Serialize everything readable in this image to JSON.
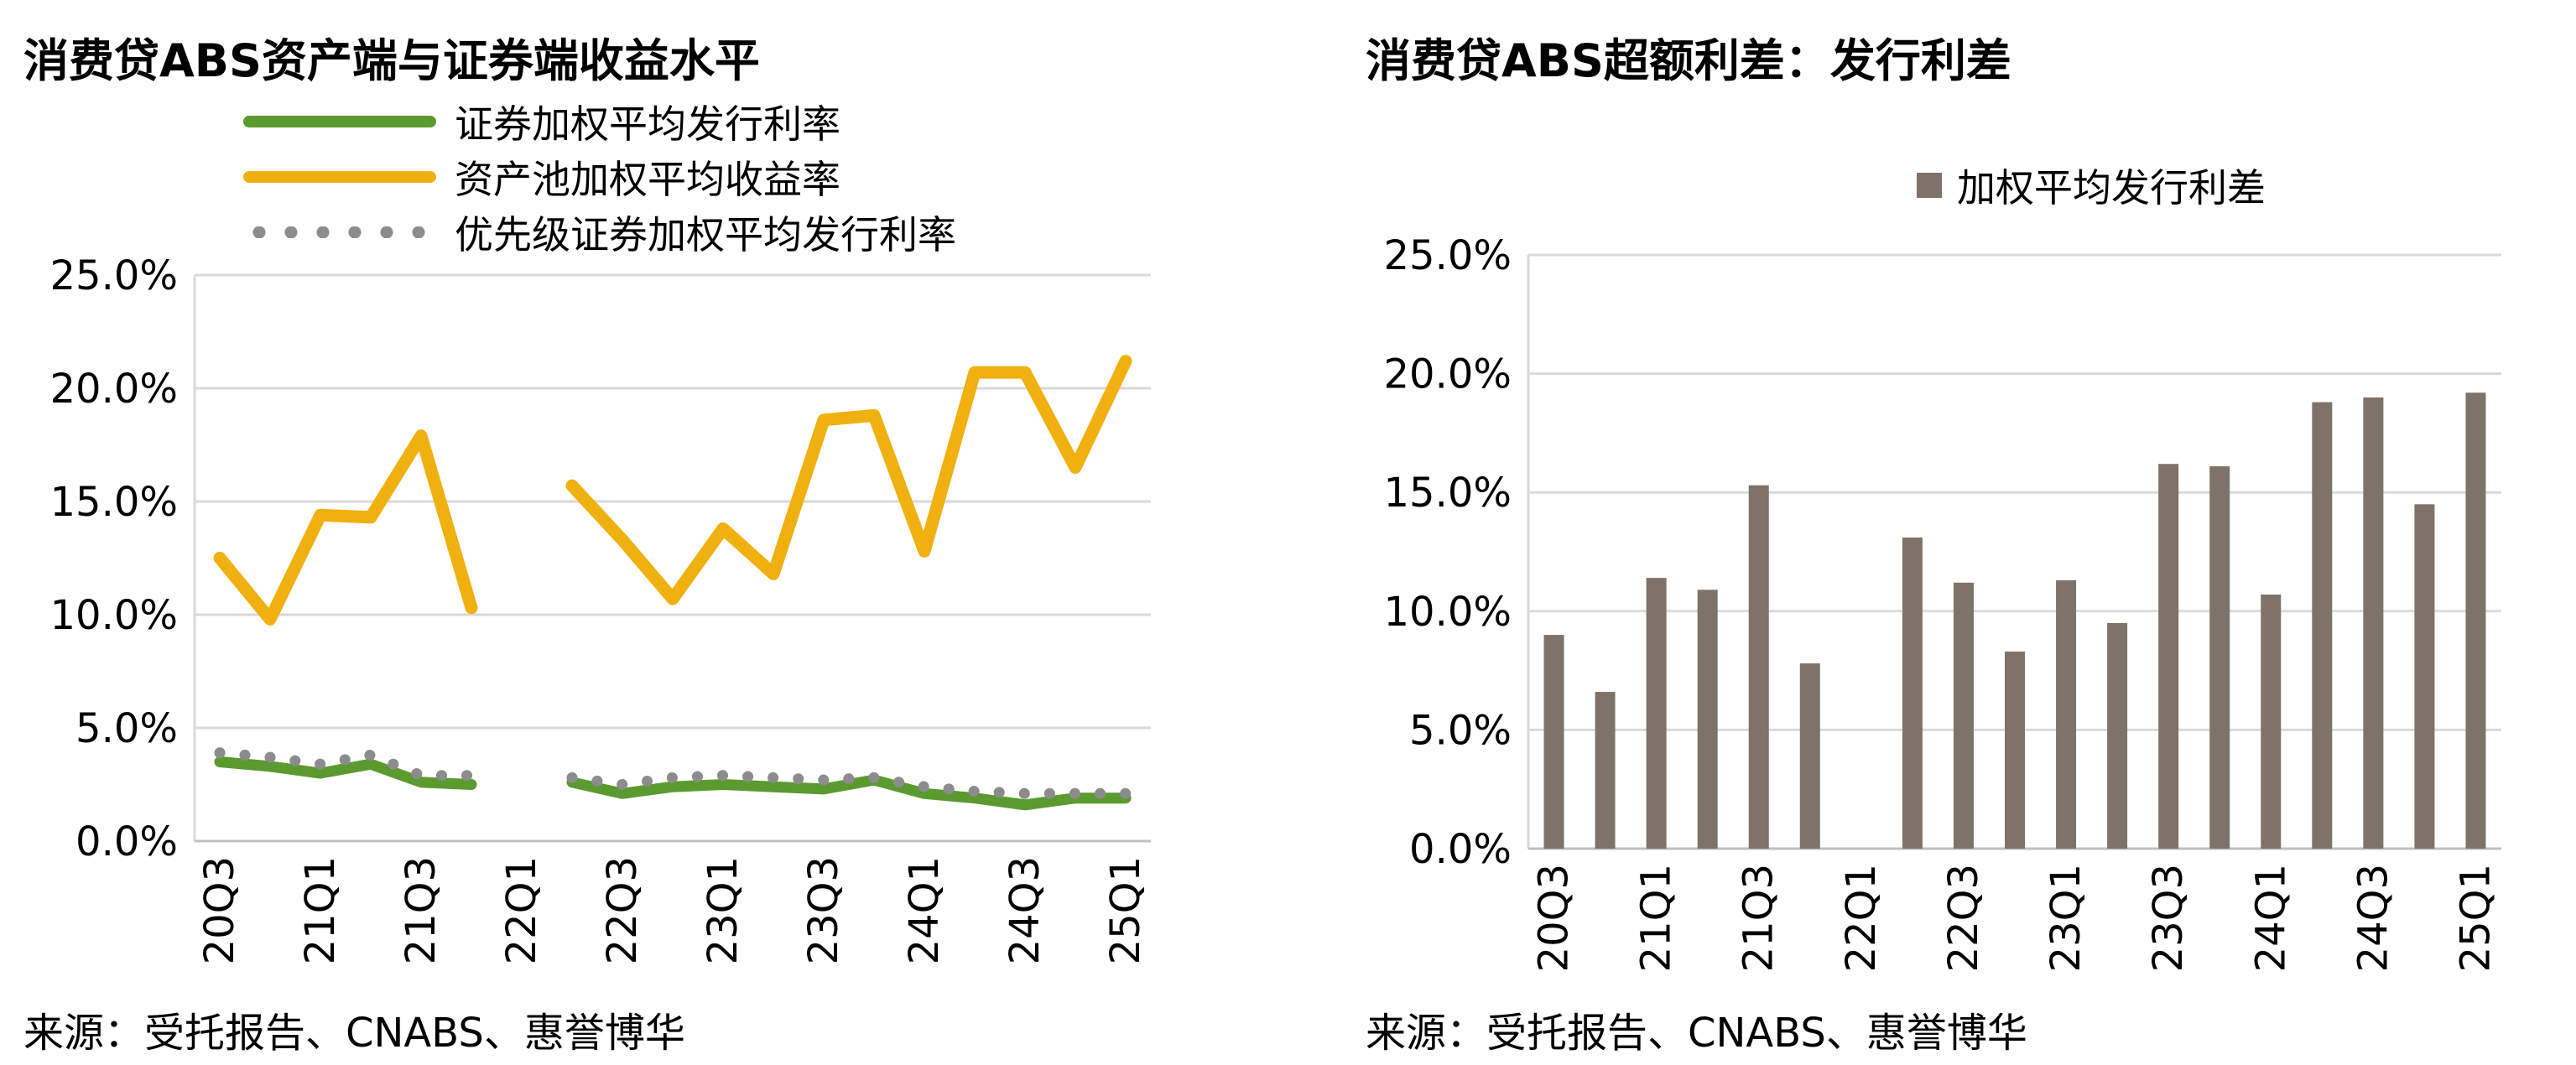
{
  "chart_data": [
    {
      "type": "line",
      "title": "消费贷ABS资产端与证券端收益水平",
      "categories": [
        "20Q3",
        "20Q4",
        "21Q1",
        "21Q2",
        "21Q3",
        "21Q4",
        "22Q1",
        "22Q2",
        "22Q3",
        "22Q4",
        "23Q1",
        "23Q2",
        "23Q3",
        "23Q4",
        "24Q1",
        "24Q2",
        "24Q3",
        "24Q4",
        "25Q1"
      ],
      "x_tick_labels": [
        "20Q3",
        "21Q1",
        "21Q3",
        "22Q1",
        "22Q3",
        "23Q1",
        "23Q3",
        "24Q1",
        "24Q3",
        "25Q1"
      ],
      "y_tick_labels": [
        "25.0%",
        "20.0%",
        "15.0%",
        "10.0%",
        "5.0%",
        "0.0%"
      ],
      "ylim": [
        0,
        25
      ],
      "y_unit": "%",
      "grid": "horizontal",
      "legend_position": "top",
      "series": [
        {
          "name": "证券加权平均发行利率",
          "color": "#5b9a2e",
          "style": "solid",
          "values": [
            3.5,
            3.3,
            3.0,
            3.4,
            2.6,
            2.5,
            null,
            2.6,
            2.1,
            2.4,
            2.5,
            2.4,
            2.3,
            2.7,
            2.1,
            1.9,
            1.6,
            1.9,
            1.9
          ]
        },
        {
          "name": "资产池加权平均收益率",
          "color": "#f0b010",
          "style": "solid",
          "values": [
            12.5,
            9.8,
            14.4,
            14.3,
            17.9,
            10.3,
            null,
            15.7,
            13.3,
            10.7,
            13.8,
            11.8,
            18.6,
            18.8,
            12.8,
            20.7,
            20.7,
            16.5,
            21.2
          ]
        },
        {
          "name": "优先级证券加权平均发行利率",
          "color": "#8c8c8c",
          "style": "dotted",
          "values": [
            3.9,
            3.7,
            3.4,
            3.8,
            2.9,
            2.9,
            null,
            2.8,
            2.5,
            2.8,
            2.9,
            2.8,
            2.7,
            2.8,
            2.4,
            2.2,
            2.1,
            2.1,
            2.1
          ]
        }
      ]
    },
    {
      "type": "bar",
      "title": "消费贷ABS超额利差：发行利差",
      "categories": [
        "20Q3",
        "20Q4",
        "21Q1",
        "21Q2",
        "21Q3",
        "21Q4",
        "22Q1",
        "22Q2",
        "22Q3",
        "22Q4",
        "23Q1",
        "23Q2",
        "23Q3",
        "23Q4",
        "24Q1",
        "24Q2",
        "24Q3",
        "24Q4",
        "25Q1"
      ],
      "x_tick_labels": [
        "20Q3",
        "21Q1",
        "21Q3",
        "22Q1",
        "22Q3",
        "23Q1",
        "23Q3",
        "24Q1",
        "24Q3",
        "25Q1"
      ],
      "y_tick_labels": [
        "25.0%",
        "20.0%",
        "15.0%",
        "10.0%",
        "5.0%",
        "0.0%"
      ],
      "ylim": [
        0,
        25
      ],
      "y_unit": "%",
      "grid": "horizontal",
      "legend_position": "top",
      "series": [
        {
          "name": "加权平均发行利差",
          "color": "#7f7269",
          "values": [
            9.0,
            6.6,
            11.4,
            10.9,
            15.3,
            7.8,
            null,
            13.1,
            11.2,
            8.3,
            11.3,
            9.5,
            16.2,
            16.1,
            10.7,
            18.8,
            19.0,
            14.5,
            19.2
          ]
        }
      ]
    }
  ],
  "source_left": "来源：受托报告、CNABS、惠誉博华",
  "source_right": "来源：受托报告、CNABS、惠誉博华"
}
